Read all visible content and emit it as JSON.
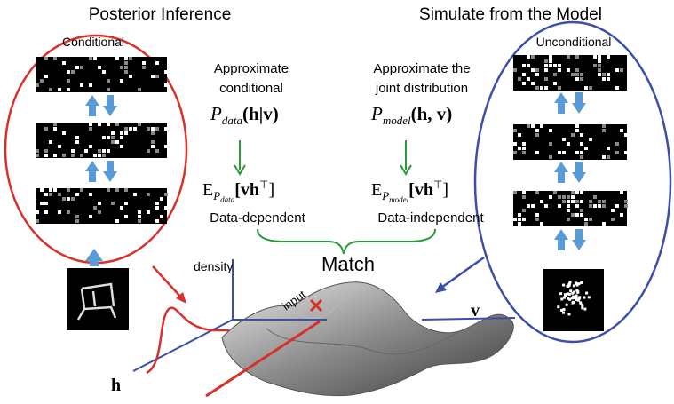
{
  "left": {
    "title": "Posterior Inference",
    "label": "Conditional"
  },
  "right": {
    "title": "Simulate from the Model",
    "label": "Unconditional"
  },
  "middle_left": {
    "line1": "Approximate",
    "line2": "conditional",
    "formula": {
      "symbol": "P",
      "sub": "data",
      "args": "(h|v)"
    },
    "expectation": {
      "symbol": "E",
      "sub": "P",
      "subsub": "data",
      "args": "[vh",
      "sup": "⊤",
      "close": "]"
    },
    "caption": "Data-dependent"
  },
  "middle_right": {
    "line1": "Approximate the",
    "line2": "joint distribution",
    "formula": {
      "symbol": "P",
      "sub": "model",
      "args": "(h, v)"
    },
    "expectation": {
      "symbol": "E",
      "sub": "P",
      "subsub": "model",
      "args": "[vh",
      "sup": "⊤",
      "close": "]"
    },
    "caption": "Data-independent"
  },
  "match": "Match",
  "axes": {
    "density": "density",
    "input": "input",
    "v": "v",
    "h": "h"
  }
}
